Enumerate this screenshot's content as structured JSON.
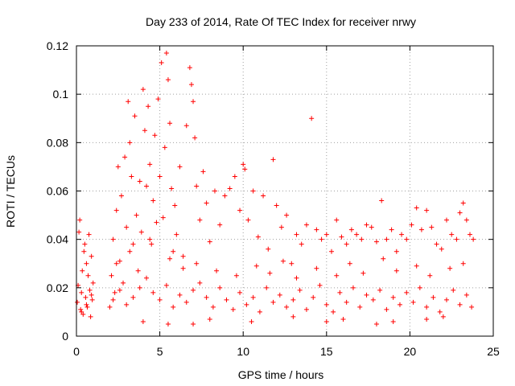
{
  "chart_data": {
    "type": "scatter",
    "title": "Day 233 of 2014, Rate Of TEC Index for receiver nrwy",
    "xlabel": "GPS time / hours",
    "ylabel": "ROTI / TECUs",
    "xlim": [
      0,
      25
    ],
    "ylim": [
      0,
      0.12
    ],
    "x_ticks": [
      0,
      5,
      10,
      15,
      20,
      25
    ],
    "x_tick_labels": [
      "0",
      "5",
      "10",
      "15",
      "20",
      "25"
    ],
    "y_ticks": [
      0,
      0.02,
      0.04,
      0.06,
      0.08,
      0.1,
      0.12
    ],
    "y_tick_labels": [
      "0",
      "0.02",
      "0.04",
      "0.06",
      "0.08",
      "0.1",
      "0.12"
    ],
    "grid": true,
    "marker": "+",
    "marker_color": "#ff0000",
    "grid_color": "#a0a0a0",
    "series": [
      {
        "name": "ROTI",
        "points": [
          [
            0.05,
            0.014
          ],
          [
            0.1,
            0.021
          ],
          [
            0.15,
            0.043
          ],
          [
            0.2,
            0.048
          ],
          [
            0.25,
            0.011
          ],
          [
            0.3,
            0.018
          ],
          [
            0.35,
            0.027
          ],
          [
            0.4,
            0.009
          ],
          [
            0.45,
            0.035
          ],
          [
            0.5,
            0.038
          ],
          [
            0.55,
            0.016
          ],
          [
            0.6,
            0.03
          ],
          [
            0.65,
            0.012
          ],
          [
            0.7,
            0.025
          ],
          [
            0.75,
            0.042
          ],
          [
            0.8,
            0.019
          ],
          [
            0.85,
            0.008
          ],
          [
            0.9,
            0.033
          ],
          [
            0.95,
            0.015
          ],
          [
            1.0,
            0.022
          ],
          [
            2.0,
            0.012
          ],
          [
            2.1,
            0.025
          ],
          [
            2.2,
            0.04
          ],
          [
            2.3,
            0.018
          ],
          [
            2.4,
            0.052
          ],
          [
            2.5,
            0.07
          ],
          [
            2.6,
            0.031
          ],
          [
            2.7,
            0.058
          ],
          [
            2.8,
            0.022
          ],
          [
            2.9,
            0.074
          ],
          [
            3.0,
            0.045
          ],
          [
            3.1,
            0.097
          ],
          [
            3.2,
            0.08
          ],
          [
            3.3,
            0.066
          ],
          [
            3.4,
            0.038
          ],
          [
            3.5,
            0.091
          ],
          [
            3.6,
            0.05
          ],
          [
            3.7,
            0.027
          ],
          [
            3.8,
            0.064
          ],
          [
            3.9,
            0.043
          ],
          [
            4.0,
            0.102
          ],
          [
            4.1,
            0.085
          ],
          [
            4.2,
            0.062
          ],
          [
            4.3,
            0.095
          ],
          [
            4.4,
            0.071
          ],
          [
            4.5,
            0.038
          ],
          [
            4.6,
            0.056
          ],
          [
            4.7,
            0.083
          ],
          [
            4.8,
            0.047
          ],
          [
            4.9,
            0.098
          ],
          [
            5.0,
            0.066
          ],
          [
            5.1,
            0.113
          ],
          [
            5.2,
            0.049
          ],
          [
            5.3,
            0.078
          ],
          [
            5.4,
            0.117
          ],
          [
            5.5,
            0.106
          ],
          [
            5.6,
            0.088
          ],
          [
            5.7,
            0.061
          ],
          [
            5.8,
            0.035
          ],
          [
            5.9,
            0.054
          ],
          [
            6.0,
            0.042
          ],
          [
            6.2,
            0.07
          ],
          [
            6.4,
            0.033
          ],
          [
            6.6,
            0.087
          ],
          [
            6.8,
            0.111
          ],
          [
            6.9,
            0.104
          ],
          [
            7.0,
            0.097
          ],
          [
            7.1,
            0.082
          ],
          [
            7.2,
            0.062
          ],
          [
            7.4,
            0.048
          ],
          [
            7.6,
            0.068
          ],
          [
            7.8,
            0.055
          ],
          [
            8.0,
            0.039
          ],
          [
            8.3,
            0.06
          ],
          [
            8.6,
            0.046
          ],
          [
            8.9,
            0.058
          ],
          [
            9.2,
            0.061
          ],
          [
            9.5,
            0.066
          ],
          [
            9.8,
            0.052
          ],
          [
            10.0,
            0.071
          ],
          [
            10.1,
            0.069
          ],
          [
            10.3,
            0.048
          ],
          [
            10.6,
            0.06
          ],
          [
            10.9,
            0.041
          ],
          [
            11.2,
            0.058
          ],
          [
            11.5,
            0.036
          ],
          [
            11.8,
            0.073
          ],
          [
            12.0,
            0.054
          ],
          [
            12.3,
            0.045
          ],
          [
            12.6,
            0.05
          ],
          [
            12.9,
            0.03
          ],
          [
            13.2,
            0.042
          ],
          [
            13.5,
            0.038
          ],
          [
            13.8,
            0.046
          ],
          [
            14.1,
            0.09
          ],
          [
            14.4,
            0.044
          ],
          [
            14.7,
            0.04
          ],
          [
            15.0,
            0.042
          ],
          [
            15.3,
            0.035
          ],
          [
            15.6,
            0.048
          ],
          [
            15.9,
            0.041
          ],
          [
            16.2,
            0.038
          ],
          [
            16.5,
            0.044
          ],
          [
            16.8,
            0.042
          ],
          [
            17.1,
            0.04
          ],
          [
            17.4,
            0.046
          ],
          [
            17.7,
            0.045
          ],
          [
            18.0,
            0.039
          ],
          [
            18.3,
            0.056
          ],
          [
            18.6,
            0.04
          ],
          [
            18.9,
            0.044
          ],
          [
            19.2,
            0.035
          ],
          [
            19.5,
            0.042
          ],
          [
            19.8,
            0.04
          ],
          [
            20.1,
            0.046
          ],
          [
            20.4,
            0.053
          ],
          [
            20.7,
            0.044
          ],
          [
            21.0,
            0.052
          ],
          [
            21.3,
            0.045
          ],
          [
            21.6,
            0.038
          ],
          [
            21.9,
            0.036
          ],
          [
            22.2,
            0.048
          ],
          [
            22.5,
            0.042
          ],
          [
            22.8,
            0.04
          ],
          [
            23.0,
            0.051
          ],
          [
            23.2,
            0.055
          ],
          [
            23.4,
            0.048
          ],
          [
            23.6,
            0.042
          ],
          [
            23.8,
            0.04
          ],
          [
            0.3,
            0.01
          ],
          [
            0.6,
            0.013
          ],
          [
            0.9,
            0.017
          ],
          [
            2.2,
            0.015
          ],
          [
            2.6,
            0.019
          ],
          [
            3.0,
            0.013
          ],
          [
            3.4,
            0.016
          ],
          [
            3.8,
            0.02
          ],
          [
            4.2,
            0.024
          ],
          [
            4.6,
            0.018
          ],
          [
            5.0,
            0.015
          ],
          [
            5.4,
            0.021
          ],
          [
            5.8,
            0.012
          ],
          [
            6.2,
            0.017
          ],
          [
            6.6,
            0.014
          ],
          [
            7.0,
            0.019
          ],
          [
            7.4,
            0.022
          ],
          [
            7.8,
            0.016
          ],
          [
            8.2,
            0.012
          ],
          [
            8.6,
            0.02
          ],
          [
            9.0,
            0.015
          ],
          [
            9.4,
            0.011
          ],
          [
            9.8,
            0.018
          ],
          [
            10.2,
            0.013
          ],
          [
            10.6,
            0.016
          ],
          [
            11.0,
            0.01
          ],
          [
            11.4,
            0.02
          ],
          [
            11.8,
            0.014
          ],
          [
            12.2,
            0.017
          ],
          [
            12.6,
            0.012
          ],
          [
            13.0,
            0.015
          ],
          [
            13.4,
            0.019
          ],
          [
            13.8,
            0.011
          ],
          [
            14.2,
            0.016
          ],
          [
            14.6,
            0.021
          ],
          [
            15.0,
            0.013
          ],
          [
            15.4,
            0.01
          ],
          [
            15.8,
            0.018
          ],
          [
            16.2,
            0.014
          ],
          [
            16.6,
            0.02
          ],
          [
            17.0,
            0.012
          ],
          [
            17.4,
            0.017
          ],
          [
            17.8,
            0.015
          ],
          [
            18.2,
            0.019
          ],
          [
            18.6,
            0.011
          ],
          [
            19.0,
            0.016
          ],
          [
            19.4,
            0.013
          ],
          [
            19.8,
            0.018
          ],
          [
            20.2,
            0.014
          ],
          [
            20.6,
            0.02
          ],
          [
            21.0,
            0.012
          ],
          [
            21.4,
            0.016
          ],
          [
            21.8,
            0.01
          ],
          [
            22.2,
            0.015
          ],
          [
            22.6,
            0.019
          ],
          [
            23.0,
            0.013
          ],
          [
            23.4,
            0.017
          ],
          [
            23.7,
            0.012
          ],
          [
            2.4,
            0.03
          ],
          [
            3.2,
            0.035
          ],
          [
            4.4,
            0.04
          ],
          [
            5.6,
            0.032
          ],
          [
            6.4,
            0.028
          ],
          [
            7.2,
            0.03
          ],
          [
            8.4,
            0.027
          ],
          [
            9.6,
            0.025
          ],
          [
            10.8,
            0.029
          ],
          [
            11.6,
            0.026
          ],
          [
            12.4,
            0.031
          ],
          [
            13.2,
            0.024
          ],
          [
            14.4,
            0.028
          ],
          [
            15.6,
            0.025
          ],
          [
            16.4,
            0.03
          ],
          [
            17.2,
            0.026
          ],
          [
            18.4,
            0.032
          ],
          [
            19.2,
            0.027
          ],
          [
            20.4,
            0.029
          ],
          [
            21.2,
            0.025
          ],
          [
            22.4,
            0.028
          ],
          [
            23.2,
            0.03
          ],
          [
            5.5,
            0.005
          ],
          [
            8.0,
            0.007
          ],
          [
            10.5,
            0.006
          ],
          [
            13.0,
            0.008
          ],
          [
            16.0,
            0.007
          ],
          [
            19.0,
            0.006
          ],
          [
            22.0,
            0.008
          ],
          [
            4.0,
            0.006
          ],
          [
            7.0,
            0.005
          ],
          [
            15.0,
            0.006
          ],
          [
            18.0,
            0.005
          ],
          [
            21.0,
            0.007
          ]
        ]
      }
    ]
  }
}
